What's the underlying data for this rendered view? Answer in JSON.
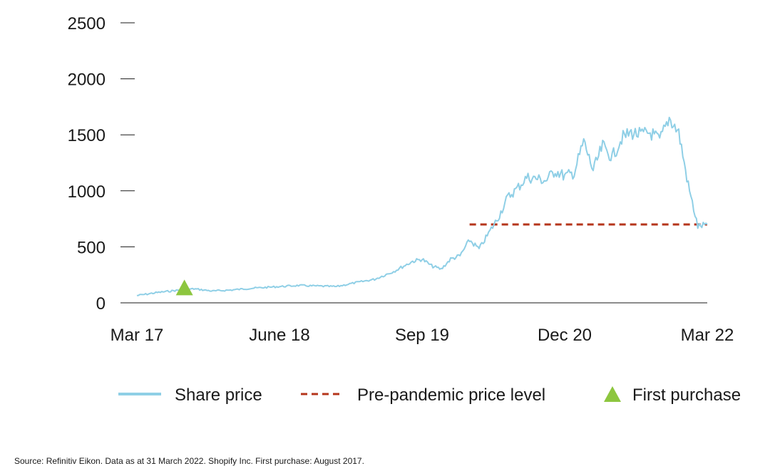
{
  "chart_data": {
    "type": "line",
    "ylim": [
      0,
      2500
    ],
    "yticks": [
      0,
      500,
      1000,
      1500,
      2000,
      2500
    ],
    "x_range": [
      "2017-03",
      "2022-03"
    ],
    "xticks": [
      {
        "date": "2017-03",
        "label": "Mar 17"
      },
      {
        "date": "2018-06",
        "label": "June 18"
      },
      {
        "date": "2019-09",
        "label": "Sep 19"
      },
      {
        "date": "2020-12",
        "label": "Dec 20"
      },
      {
        "date": "2022-03",
        "label": "Mar 22"
      }
    ],
    "grid": false,
    "legend_placement": "bottom",
    "series": [
      {
        "name": "Share price",
        "color": "#8fcfe6",
        "points": [
          [
            "2017-03",
            65
          ],
          [
            "2017-05",
            90
          ],
          [
            "2017-07",
            110
          ],
          [
            "2017-09",
            125
          ],
          [
            "2017-11",
            105
          ],
          [
            "2018-01",
            115
          ],
          [
            "2018-03",
            130
          ],
          [
            "2018-06",
            145
          ],
          [
            "2018-08",
            155
          ],
          [
            "2018-10",
            150
          ],
          [
            "2018-12",
            145
          ],
          [
            "2019-02",
            180
          ],
          [
            "2019-04",
            210
          ],
          [
            "2019-06",
            280
          ],
          [
            "2019-08",
            370
          ],
          [
            "2019-09",
            390
          ],
          [
            "2019-10",
            330
          ],
          [
            "2019-11",
            300
          ],
          [
            "2019-12",
            390
          ],
          [
            "2020-01",
            420
          ],
          [
            "2020-02",
            560
          ],
          [
            "2020-03",
            480
          ],
          [
            "2020-04",
            620
          ],
          [
            "2020-05",
            760
          ],
          [
            "2020-06",
            940
          ],
          [
            "2020-07",
            1020
          ],
          [
            "2020-08",
            1120
          ],
          [
            "2020-09",
            1110
          ],
          [
            "2020-10",
            1090
          ],
          [
            "2020-11",
            1180
          ],
          [
            "2020-12",
            1130
          ],
          [
            "2021-01",
            1160
          ],
          [
            "2021-02",
            1440
          ],
          [
            "2021-03",
            1180
          ],
          [
            "2021-04",
            1400
          ],
          [
            "2021-05",
            1300
          ],
          [
            "2021-06",
            1470
          ],
          [
            "2021-07",
            1520
          ],
          [
            "2021-08",
            1500
          ],
          [
            "2021-09",
            1520
          ],
          [
            "2021-10",
            1450
          ],
          [
            "2021-11",
            1650
          ],
          [
            "2021-12",
            1520
          ],
          [
            "2022-01",
            1050
          ],
          [
            "2022-02",
            680
          ],
          [
            "2022-03",
            700
          ]
        ]
      }
    ],
    "reference_lines": [
      {
        "name": "Pre-pandemic price level",
        "color": "#b5351b",
        "from": "2020-02",
        "to": "2022-03",
        "value": 700
      }
    ],
    "markers": [
      {
        "name": "First purchase",
        "color": "#8dc63f",
        "date": "2017-08",
        "value": 125
      }
    ]
  },
  "legend": {
    "share_price": "Share price",
    "pre_pandemic": "Pre-pandemic price level",
    "first_purchase": "First purchase"
  },
  "footer": {
    "source": "Source: Refinitiv Eikon. Data as at 31 March 2022. Shopify Inc. First purchase: August 2017."
  }
}
